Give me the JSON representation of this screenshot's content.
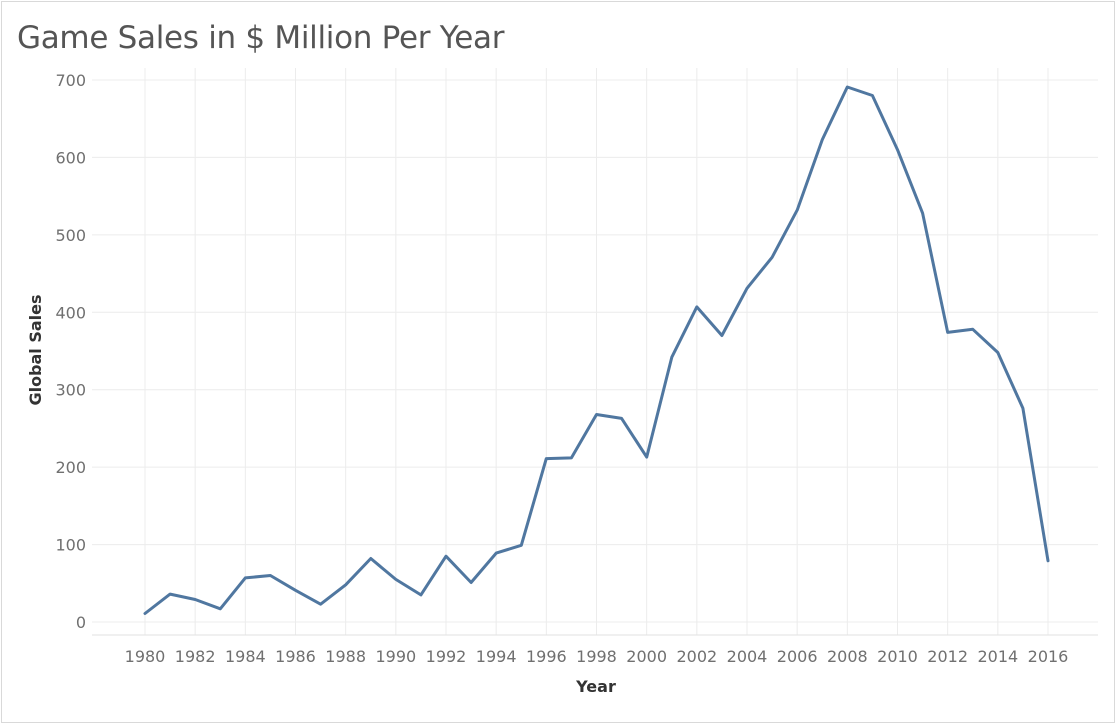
{
  "chart_data": {
    "type": "line",
    "title": "Game Sales in $ Million Per Year",
    "xlabel": "Year",
    "ylabel": "Global Sales",
    "ylim": [
      0,
      700
    ],
    "yticks": [
      0,
      100,
      200,
      300,
      400,
      500,
      600,
      700
    ],
    "xticks": [
      1980,
      1982,
      1984,
      1986,
      1988,
      1990,
      1992,
      1994,
      1996,
      1998,
      2000,
      2002,
      2004,
      2006,
      2008,
      2010,
      2012,
      2014,
      2016
    ],
    "grid": true,
    "colors": {
      "line": "#5077a0",
      "grid": "#ececec",
      "tick": "#707070"
    },
    "series": [
      {
        "x": [
          1980,
          1981,
          1982,
          1983,
          1984,
          1985,
          1986,
          1987,
          1988,
          1989,
          1990,
          1991,
          1992,
          1993,
          1994,
          1995,
          1996,
          1997,
          1998,
          1999,
          2000,
          2001,
          2002,
          2003,
          2004,
          2005,
          2006,
          2007,
          2008,
          2009,
          2010,
          2011,
          2012,
          2013,
          2014,
          2015,
          2016
        ],
        "values": [
          11,
          36,
          29,
          17,
          57,
          60,
          41,
          23,
          48,
          82,
          55,
          35,
          85,
          51,
          89,
          99,
          211,
          212,
          268,
          263,
          213,
          342,
          407,
          370,
          431,
          471,
          532,
          623,
          691,
          680,
          610,
          528,
          374,
          378,
          348,
          276,
          79
        ]
      }
    ]
  }
}
